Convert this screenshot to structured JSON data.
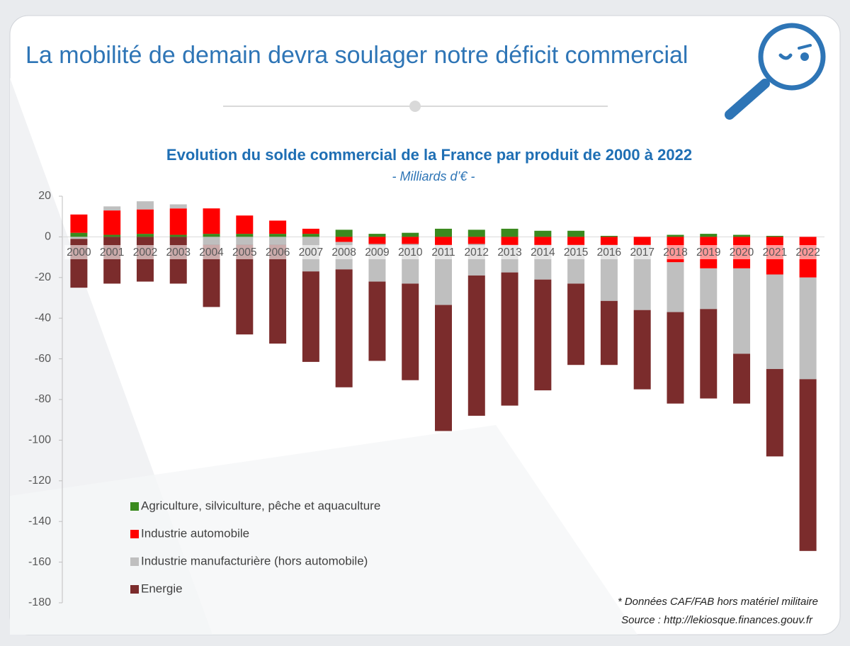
{
  "header": {
    "title": "La mobilité de demain devra soulager notre déficit commercial"
  },
  "chart_data": {
    "type": "stacked_bar",
    "title": "Evolution du solde commercial de la France par produit de 2000 à 2022",
    "subtitle": "- Milliards d’€ -",
    "annotations": [
      "* Données CAF/FAB hors matériel militaire",
      "Source : http://lekiosque.finances.gouv.fr"
    ],
    "categories": [
      "2000",
      "2001",
      "2002",
      "2003",
      "2004",
      "2005",
      "2006",
      "2007",
      "2008",
      "2009",
      "2010",
      "2011",
      "2012",
      "2013",
      "2014",
      "2015",
      "2016",
      "2017",
      "2018",
      "2019",
      "2020",
      "2021",
      "2022"
    ],
    "series": [
      {
        "name": "Agriculture, silviculture, pêche et aquaculture",
        "color": "#3a8a1e",
        "values": [
          2,
          1,
          1.5,
          1,
          1.5,
          1.5,
          1.5,
          1.5,
          3.5,
          1.5,
          2,
          4,
          3.5,
          4,
          3,
          3,
          0.5,
          0,
          1,
          1.5,
          1,
          0.5,
          0
        ]
      },
      {
        "name": "Industrie automobile",
        "color": "#ff0000",
        "values": [
          9,
          12,
          12,
          13,
          12.5,
          9,
          6.5,
          2.5,
          -2.5,
          -3.5,
          -3.5,
          -4,
          -3.5,
          -4,
          -4,
          -4,
          -4,
          -4,
          -12.5,
          -15.5,
          -15.5,
          -18.5,
          -20
        ]
      },
      {
        "name": "Industrie manufacturière (hors automobile)",
        "color": "#bfbfbf",
        "values": [
          -1,
          2,
          4,
          2,
          -4,
          -4,
          -4,
          -17,
          -13.5,
          -18.5,
          -19.5,
          -29.5,
          -15.5,
          -13.5,
          -17,
          -19,
          -27.5,
          -32,
          -24.5,
          -20,
          -42,
          -46.5,
          -50
        ]
      },
      {
        "name": "Energie",
        "color": "#7b2c2c",
        "values": [
          -24,
          -23,
          -22,
          -23,
          -30.5,
          -44,
          -48.5,
          -44.5,
          -58,
          -39,
          -47.5,
          -62,
          -69,
          -65.5,
          -54.5,
          -40,
          -31.5,
          -39,
          -45,
          -44,
          -24.5,
          -43,
          -84.5
        ]
      }
    ],
    "ylim": [
      -180,
      20
    ],
    "yticks": [
      20,
      0,
      -20,
      -40,
      -60,
      -80,
      -100,
      -120,
      -140,
      -160,
      -180
    ],
    "legend": "lower-left",
    "grid": false
  }
}
